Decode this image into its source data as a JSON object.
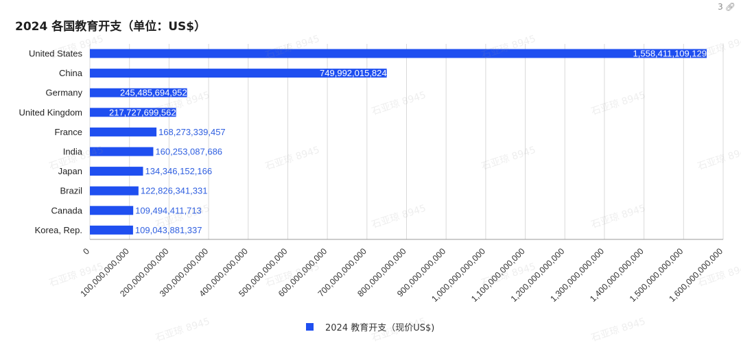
{
  "title": "2024 各国教育开支（单位：US$）",
  "corner": {
    "count": "3",
    "icon": "link-icon"
  },
  "watermark": "石亚琼 8945",
  "colors": {
    "bar": "#1f4ff0",
    "label_inside": "#ffffff",
    "label_outside": "#2f5fe0",
    "grid": "#d9d9d9"
  },
  "chart_data": {
    "type": "bar",
    "orientation": "horizontal",
    "categories": [
      "United States",
      "China",
      "Germany",
      "United Kingdom",
      "France",
      "India",
      "Japan",
      "Brazil",
      "Canada",
      "Korea, Rep."
    ],
    "series": [
      {
        "name": "2024 教育开支（现价US$)",
        "values": [
          1558411109129,
          749992015824,
          245485694952,
          217727699562,
          168273339457,
          160253087686,
          134346152166,
          122826341331,
          109494411713,
          109043881337
        ],
        "labels": [
          "1,558,411,109,129",
          "749,992,015,824",
          "245,485,694,952",
          "217,727,699,562",
          "168,273,339,457",
          "160,253,087,686",
          "134,346,152,166",
          "122,826,341,331",
          "109,494,411,713",
          "109,043,881,337"
        ]
      }
    ],
    "x_ticks": [
      0,
      100000000000,
      200000000000,
      300000000000,
      400000000000,
      500000000000,
      600000000000,
      700000000000,
      800000000000,
      900000000000,
      1000000000000,
      1100000000000,
      1200000000000,
      1300000000000,
      1400000000000,
      1500000000000,
      1600000000000
    ],
    "x_tick_labels": [
      "0",
      "100,000,000,000",
      "200,000,000,000",
      "300,000,000,000",
      "400,000,000,000",
      "500,000,000,000",
      "600,000,000,000",
      "700,000,000,000",
      "800,000,000,000",
      "900,000,000,000",
      "1,000,000,000,000",
      "1,100,000,000,000",
      "1,200,000,000,000",
      "1,300,000,000,000",
      "1,400,000,000,000",
      "1,500,000,000,000",
      "1,600,000,000,000"
    ],
    "xlim": [
      0,
      1600000000000
    ],
    "grid": true,
    "legend_position": "bottom"
  }
}
